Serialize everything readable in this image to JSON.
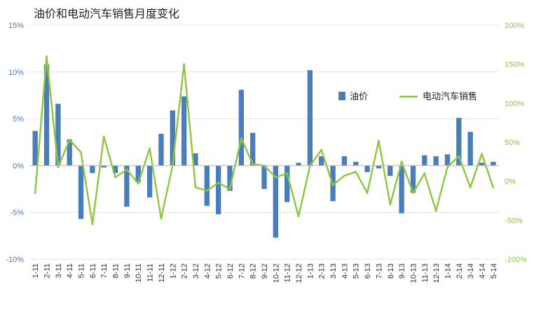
{
  "chart_data": {
    "type": "bar",
    "title": "油价和电动汽车销售月度变化",
    "categories": [
      "1-11",
      "2-11",
      "3-11",
      "4-11",
      "5-11",
      "6-11",
      "7-11",
      "8-11",
      "9-11",
      "10-11",
      "11-11",
      "12-11",
      "1-12",
      "2-12",
      "3-12",
      "4-12",
      "5-12",
      "6-12",
      "7-12",
      "8-12",
      "9-12",
      "10-12",
      "11-12",
      "12-12",
      "1-13",
      "2-13",
      "3-13",
      "4-13",
      "5-13",
      "6-13",
      "7-13",
      "8-13",
      "9-13",
      "10-13",
      "11-13",
      "12-13",
      "1-14",
      "2-14",
      "3-14",
      "4-14",
      "5-14"
    ],
    "series": [
      {
        "name": "油价",
        "type": "bar",
        "axis": "left",
        "color": "#4a7ebb",
        "values": [
          3.7,
          10.8,
          6.6,
          2.8,
          -5.7,
          -0.8,
          -0.2,
          -0.8,
          -4.4,
          -1.8,
          -3.4,
          3.4,
          5.9,
          7.4,
          1.3,
          -4.3,
          -5.2,
          -2.7,
          8.1,
          3.5,
          -2.5,
          -7.7,
          -3.9,
          0.3,
          10.2,
          1.0,
          -3.8,
          1.0,
          0.4,
          -0.7,
          -0.3,
          -1.1,
          -5.1,
          -2.9,
          1.1,
          1.0,
          1.2,
          5.1,
          3.6,
          0.3,
          0.4
        ]
      },
      {
        "name": "电动汽车销售",
        "type": "line",
        "axis": "right",
        "color": "#8dc63f",
        "values": [
          -15,
          160,
          18,
          53,
          37,
          -55,
          57,
          5,
          15,
          -3,
          42,
          -48,
          20,
          150,
          -8,
          -12,
          -2,
          -10,
          55,
          22,
          20,
          5,
          10,
          -45,
          20,
          40,
          -5,
          7,
          12,
          -15,
          52,
          -30,
          25,
          -15,
          10,
          -38,
          18,
          32,
          -8,
          35,
          -8
        ]
      }
    ],
    "y_left": {
      "min": -10,
      "max": 15,
      "ticks": [
        "-10%",
        "-5%",
        "0%",
        "5%",
        "10%",
        "15%"
      ]
    },
    "y_right": {
      "min": -100,
      "max": 200,
      "ticks": [
        "-100%",
        "-50%",
        "0%",
        "50%",
        "100%",
        "150%",
        "200%"
      ]
    },
    "legend_position": "right",
    "grid": true
  }
}
